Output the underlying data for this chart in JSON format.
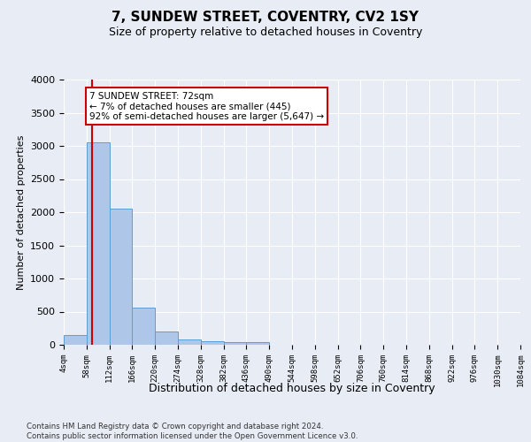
{
  "title": "7, SUNDEW STREET, COVENTRY, CV2 1SY",
  "subtitle": "Size of property relative to detached houses in Coventry",
  "xlabel": "Distribution of detached houses by size in Coventry",
  "ylabel": "Number of detached properties",
  "bar_color": "#aec6e8",
  "bar_edge_color": "#5a9fd4",
  "background_color": "#e8ecf5",
  "grid_color": "#ffffff",
  "bin_edges": [
    4,
    58,
    112,
    166,
    220,
    274,
    328,
    382,
    436,
    490,
    544,
    598,
    652,
    706,
    760,
    814,
    868,
    922,
    976,
    1030,
    1084
  ],
  "bar_heights": [
    145,
    3060,
    2060,
    560,
    200,
    85,
    60,
    45,
    45,
    0,
    0,
    0,
    0,
    0,
    0,
    0,
    0,
    0,
    0,
    0
  ],
  "property_size": 72,
  "property_line_color": "#cc0000",
  "annotation_line1": "7 SUNDEW STREET: 72sqm",
  "annotation_line2": "← 7% of detached houses are smaller (445)",
  "annotation_line3": "92% of semi-detached houses are larger (5,647) →",
  "annotation_box_color": "#ffffff",
  "annotation_box_edge_color": "#cc0000",
  "ylim": [
    0,
    4000
  ],
  "yticks": [
    0,
    500,
    1000,
    1500,
    2000,
    2500,
    3000,
    3500,
    4000
  ],
  "footer_line1": "Contains HM Land Registry data © Crown copyright and database right 2024.",
  "footer_line2": "Contains public sector information licensed under the Open Government Licence v3.0."
}
